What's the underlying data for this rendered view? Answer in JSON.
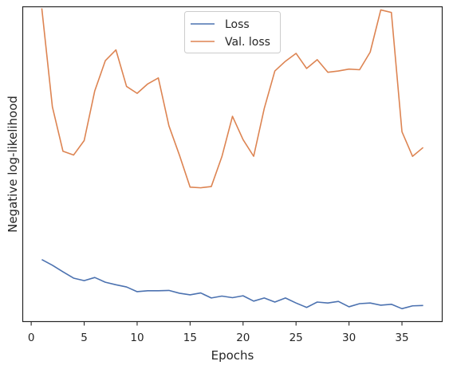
{
  "chart_data": {
    "type": "line",
    "xlabel": "Epochs",
    "ylabel": "Negative log-likelihood",
    "xlim": [
      -0.8,
      38.8
    ],
    "ylim": [
      0,
      100
    ],
    "x_ticks": [
      0,
      5,
      10,
      15,
      20,
      25,
      30,
      35
    ],
    "y_ticks_visible": false,
    "grid": false,
    "legend_position": "upper center",
    "x": [
      1,
      2,
      3,
      4,
      5,
      6,
      7,
      8,
      9,
      10,
      11,
      12,
      13,
      14,
      15,
      16,
      17,
      18,
      19,
      20,
      21,
      22,
      23,
      24,
      25,
      26,
      27,
      28,
      29,
      30,
      31,
      32,
      33,
      34,
      35,
      36,
      37
    ],
    "series": [
      {
        "name": "Loss",
        "color": "#4c72b0",
        "values": [
          19.7,
          17.9,
          15.8,
          13.8,
          13.0,
          14.0,
          12.5,
          11.7,
          11.0,
          9.5,
          9.8,
          9.8,
          9.9,
          9.0,
          8.5,
          9.1,
          7.5,
          8.1,
          7.6,
          8.2,
          6.5,
          7.5,
          6.2,
          7.5,
          5.9,
          4.5,
          6.2,
          5.9,
          6.4,
          4.7,
          5.7,
          5.9,
          5.2,
          5.5,
          4.1,
          5.0,
          5.1
        ]
      },
      {
        "name": "Val. loss",
        "color": "#dd8452",
        "values": [
          99.5,
          68.2,
          54.1,
          52.9,
          57.5,
          73.3,
          82.9,
          86.3,
          74.7,
          72.5,
          75.5,
          77.4,
          62.2,
          52.8,
          42.7,
          42.5,
          42.9,
          52.4,
          65.2,
          57.8,
          52.5,
          67.7,
          79.6,
          82.7,
          85.2,
          80.4,
          83.2,
          79.2,
          79.6,
          80.2,
          80.0,
          85.6,
          99.0,
          98.2,
          60.3,
          52.5,
          55.3
        ]
      }
    ]
  }
}
